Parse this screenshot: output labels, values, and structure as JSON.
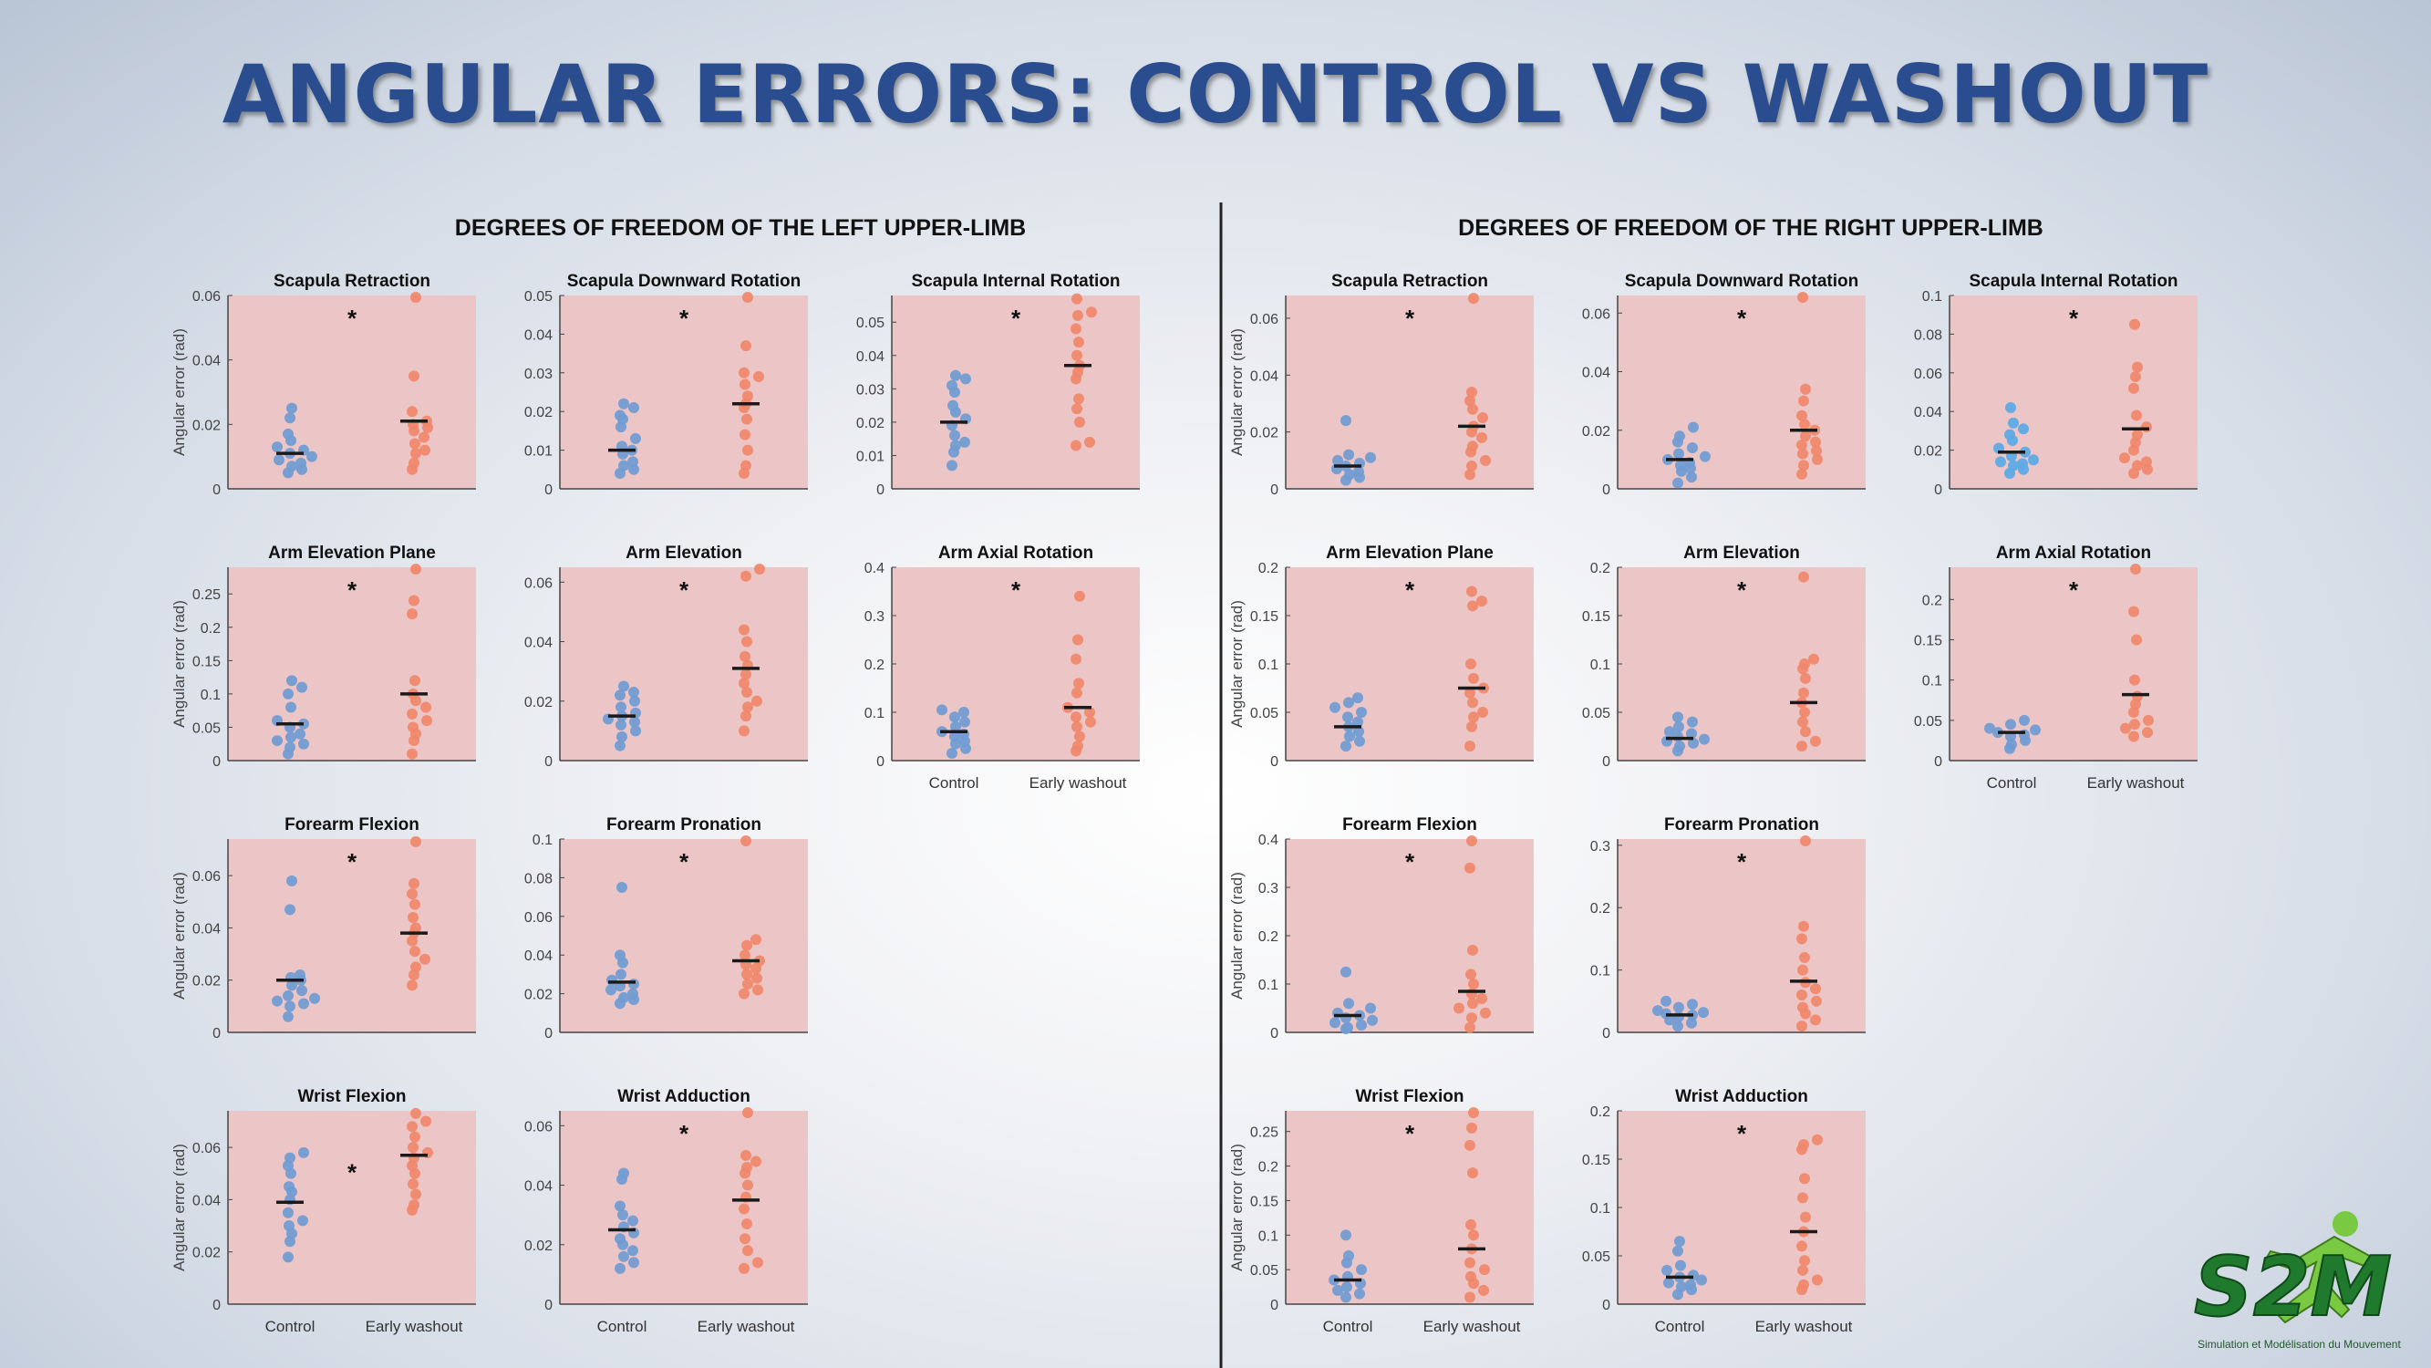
{
  "title": "ANGULAR ERRORS: CONTROL VS WASHOUT",
  "logo": {
    "text": "S2M",
    "tagline": "Simulation et Modélisation du Mouvement"
  },
  "colors": {
    "control": "#6f9bd3",
    "washout": "#f0876a",
    "panel_bg": "#ecc6c6",
    "title": "#2a4d8f",
    "median": "#1a1a1a"
  },
  "chart_data": [
    {
      "type": "scatter",
      "group_title": "DEGREES OF FREEDOM OF THE LEFT UPPER-LIMB",
      "categories": [
        "Control",
        "Early washout"
      ],
      "ylabel": "Angular error (rad)",
      "significance_marker": "*",
      "panels": [
        {
          "title": "Scapula Retraction",
          "ylim": [
            0,
            0.06
          ],
          "ticks": [
            "0",
            "0.02",
            "0.04",
            "0.06"
          ],
          "control": [
            0.005,
            0.006,
            0.007,
            0.008,
            0.009,
            0.01,
            0.011,
            0.012,
            0.013,
            0.015,
            0.017,
            0.022,
            0.025
          ],
          "control_median": 0.011,
          "washout": [
            0.006,
            0.008,
            0.011,
            0.012,
            0.014,
            0.016,
            0.018,
            0.019,
            0.02,
            0.021,
            0.024,
            0.035,
            0.06
          ],
          "washout_median": 0.021
        },
        {
          "title": "Scapula Downward Rotation",
          "ylim": [
            0,
            0.05
          ],
          "ticks": [
            "0",
            "0.01",
            "0.02",
            "0.03",
            "0.04",
            "0.05"
          ],
          "control": [
            0.004,
            0.005,
            0.006,
            0.007,
            0.009,
            0.01,
            0.011,
            0.013,
            0.016,
            0.018,
            0.019,
            0.021,
            0.022
          ],
          "control_median": 0.01,
          "washout": [
            0.004,
            0.006,
            0.01,
            0.014,
            0.018,
            0.021,
            0.022,
            0.024,
            0.027,
            0.029,
            0.03,
            0.037,
            0.05
          ],
          "washout_median": 0.022
        },
        {
          "title": "Scapula Internal Rotation",
          "ylim": [
            0,
            0.058
          ],
          "ticks": [
            "0",
            "0.01",
            "0.02",
            "0.03",
            "0.04",
            "0.05"
          ],
          "control": [
            0.007,
            0.011,
            0.013,
            0.014,
            0.016,
            0.019,
            0.021,
            0.023,
            0.025,
            0.029,
            0.031,
            0.033,
            0.034
          ],
          "control_median": 0.02,
          "washout": [
            0.013,
            0.014,
            0.02,
            0.024,
            0.027,
            0.033,
            0.035,
            0.037,
            0.04,
            0.044,
            0.048,
            0.052,
            0.053,
            0.057
          ],
          "washout_median": 0.037
        },
        {
          "title": "Arm Elevation Plane",
          "ylim": [
            0,
            0.29
          ],
          "ticks": [
            "0",
            "0.05",
            "0.1",
            "0.15",
            "0.2",
            "0.25"
          ],
          "control": [
            0.01,
            0.02,
            0.025,
            0.03,
            0.035,
            0.04,
            0.05,
            0.055,
            0.06,
            0.08,
            0.1,
            0.11,
            0.12
          ],
          "control_median": 0.055,
          "washout": [
            0.01,
            0.03,
            0.04,
            0.05,
            0.06,
            0.07,
            0.08,
            0.09,
            0.1,
            0.12,
            0.22,
            0.24,
            0.29
          ],
          "washout_median": 0.1
        },
        {
          "title": "Arm Elevation",
          "ylim": [
            0,
            0.065
          ],
          "ticks": [
            "0",
            "0.02",
            "0.04",
            "0.06"
          ],
          "control": [
            0.005,
            0.008,
            0.01,
            0.012,
            0.013,
            0.014,
            0.015,
            0.016,
            0.018,
            0.02,
            0.022,
            0.023,
            0.025
          ],
          "control_median": 0.015,
          "washout": [
            0.01,
            0.015,
            0.018,
            0.02,
            0.023,
            0.026,
            0.029,
            0.032,
            0.035,
            0.04,
            0.044,
            0.062,
            0.065
          ],
          "washout_median": 0.031
        },
        {
          "title": "Arm Axial Rotation",
          "ylim": [
            0,
            0.4
          ],
          "ticks": [
            "0",
            "0.1",
            "0.2",
            "0.3",
            "0.4"
          ],
          "control": [
            0.015,
            0.025,
            0.035,
            0.04,
            0.05,
            0.055,
            0.06,
            0.07,
            0.08,
            0.09,
            0.1,
            0.105
          ],
          "control_median": 0.06,
          "washout": [
            0.02,
            0.03,
            0.05,
            0.07,
            0.08,
            0.09,
            0.1,
            0.11,
            0.14,
            0.16,
            0.21,
            0.25,
            0.34
          ],
          "washout_median": 0.11
        },
        {
          "title": "Forearm Flexion",
          "ylim": [
            0,
            0.074
          ],
          "ticks": [
            "0",
            "0.02",
            "0.04",
            "0.06"
          ],
          "control": [
            0.006,
            0.01,
            0.011,
            0.012,
            0.013,
            0.014,
            0.016,
            0.018,
            0.02,
            0.021,
            0.022,
            0.047,
            0.058
          ],
          "control_median": 0.02,
          "washout": [
            0.018,
            0.022,
            0.025,
            0.028,
            0.031,
            0.035,
            0.038,
            0.04,
            0.044,
            0.049,
            0.053,
            0.057,
            0.073
          ],
          "washout_median": 0.038
        },
        {
          "title": "Forearm Pronation",
          "ylim": [
            0,
            0.1
          ],
          "ticks": [
            "0",
            "0.02",
            "0.04",
            "0.06",
            "0.08",
            "0.1"
          ],
          "control": [
            0.015,
            0.017,
            0.018,
            0.02,
            0.022,
            0.024,
            0.025,
            0.027,
            0.03,
            0.036,
            0.04,
            0.075
          ],
          "control_median": 0.026,
          "washout": [
            0.02,
            0.022,
            0.025,
            0.028,
            0.03,
            0.033,
            0.035,
            0.037,
            0.04,
            0.045,
            0.048,
            0.1
          ],
          "washout_median": 0.037
        },
        {
          "title": "Wrist Flexion",
          "ylim": [
            0,
            0.074
          ],
          "ticks": [
            "0",
            "0.02",
            "0.04",
            "0.06"
          ],
          "control": [
            0.018,
            0.024,
            0.027,
            0.03,
            0.032,
            0.035,
            0.04,
            0.043,
            0.045,
            0.05,
            0.053,
            0.056,
            0.058
          ],
          "control_median": 0.039,
          "washout": [
            0.036,
            0.038,
            0.042,
            0.046,
            0.05,
            0.053,
            0.056,
            0.058,
            0.06,
            0.064,
            0.068,
            0.07,
            0.073
          ],
          "washout_median": 0.057,
          "star_position": "between"
        },
        {
          "title": "Wrist  Adduction",
          "ylim": [
            0,
            0.065
          ],
          "ticks": [
            "0",
            "0.02",
            "0.04",
            "0.06"
          ],
          "control": [
            0.012,
            0.014,
            0.016,
            0.018,
            0.02,
            0.022,
            0.024,
            0.026,
            0.028,
            0.03,
            0.033,
            0.042,
            0.044
          ],
          "control_median": 0.025,
          "washout": [
            0.012,
            0.014,
            0.018,
            0.022,
            0.027,
            0.032,
            0.036,
            0.04,
            0.044,
            0.046,
            0.048,
            0.05,
            0.065
          ],
          "washout_median": 0.035
        }
      ]
    },
    {
      "type": "scatter",
      "group_title": "DEGREES OF FREEDOM OF THE RIGHT UPPER-LIMB",
      "categories": [
        "Control",
        "Early washout"
      ],
      "ylabel": "Angular error (rad)",
      "significance_marker": "*",
      "panels": [
        {
          "title": "Scapula Retraction",
          "ylim": [
            0,
            0.068
          ],
          "ticks": [
            "0",
            "0.02",
            "0.04",
            "0.06"
          ],
          "control": [
            0.003,
            0.004,
            0.005,
            0.006,
            0.007,
            0.008,
            0.009,
            0.01,
            0.011,
            0.012,
            0.024
          ],
          "control_median": 0.008,
          "washout": [
            0.005,
            0.008,
            0.01,
            0.013,
            0.015,
            0.018,
            0.02,
            0.022,
            0.025,
            0.028,
            0.031,
            0.034,
            0.067
          ],
          "washout_median": 0.022
        },
        {
          "title": "Scapula Downward Rotation",
          "ylim": [
            0,
            0.066
          ],
          "ticks": [
            "0",
            "0.02",
            "0.04",
            "0.06"
          ],
          "control": [
            0.002,
            0.004,
            0.006,
            0.007,
            0.008,
            0.009,
            0.01,
            0.011,
            0.012,
            0.014,
            0.016,
            0.018,
            0.021
          ],
          "control_median": 0.01,
          "washout": [
            0.005,
            0.008,
            0.01,
            0.012,
            0.013,
            0.015,
            0.016,
            0.018,
            0.02,
            0.022,
            0.025,
            0.03,
            0.034,
            0.066
          ],
          "washout_median": 0.02
        },
        {
          "title": "Scapula Internal Rotation",
          "ylim": [
            0,
            0.1
          ],
          "ticks": [
            "0",
            "0.02",
            "0.04",
            "0.06",
            "0.08",
            "0.1"
          ],
          "control": [
            0.008,
            0.01,
            0.012,
            0.013,
            0.014,
            0.015,
            0.017,
            0.019,
            0.021,
            0.025,
            0.028,
            0.031,
            0.034,
            0.042
          ],
          "control_median": 0.019,
          "washout": [
            0.008,
            0.01,
            0.012,
            0.014,
            0.016,
            0.02,
            0.024,
            0.028,
            0.032,
            0.038,
            0.052,
            0.058,
            0.063,
            0.085
          ],
          "washout_median": 0.031,
          "color_override": "#5aa9e6"
        },
        {
          "title": "Arm Elevation Plane",
          "ylim": [
            0,
            0.2
          ],
          "ticks": [
            "0",
            "0.05",
            "0.1",
            "0.15",
            "0.2"
          ],
          "control": [
            0.015,
            0.02,
            0.025,
            0.03,
            0.035,
            0.04,
            0.045,
            0.05,
            0.055,
            0.06,
            0.065
          ],
          "control_median": 0.035,
          "washout": [
            0.015,
            0.035,
            0.045,
            0.05,
            0.06,
            0.07,
            0.075,
            0.085,
            0.1,
            0.16,
            0.165,
            0.175
          ],
          "washout_median": 0.075
        },
        {
          "title": "Arm Elevation",
          "ylim": [
            0,
            0.2
          ],
          "ticks": [
            "0",
            "0.05",
            "0.1",
            "0.15",
            "0.2"
          ],
          "control": [
            0.01,
            0.015,
            0.018,
            0.02,
            0.022,
            0.025,
            0.028,
            0.03,
            0.035,
            0.04,
            0.045
          ],
          "control_median": 0.023,
          "washout": [
            0.015,
            0.02,
            0.03,
            0.04,
            0.05,
            0.06,
            0.07,
            0.085,
            0.095,
            0.1,
            0.105,
            0.19
          ],
          "washout_median": 0.06
        },
        {
          "title": "Arm Axial Rotation",
          "ylim": [
            0,
            0.24
          ],
          "ticks": [
            "0",
            "0.05",
            "0.1",
            "0.15",
            "0.2"
          ],
          "control": [
            0.015,
            0.02,
            0.025,
            0.03,
            0.032,
            0.035,
            0.038,
            0.04,
            0.045,
            0.05
          ],
          "control_median": 0.035,
          "washout": [
            0.03,
            0.035,
            0.04,
            0.045,
            0.05,
            0.06,
            0.07,
            0.08,
            0.1,
            0.15,
            0.185,
            0.24
          ],
          "washout_median": 0.082
        },
        {
          "title": "Forearm Flexion",
          "ylim": [
            0,
            0.4
          ],
          "ticks": [
            "0",
            "0.1",
            "0.2",
            "0.3",
            "0.4"
          ],
          "control": [
            0.005,
            0.01,
            0.015,
            0.02,
            0.025,
            0.03,
            0.035,
            0.04,
            0.05,
            0.06,
            0.125
          ],
          "control_median": 0.035,
          "washout": [
            0.01,
            0.03,
            0.04,
            0.05,
            0.06,
            0.07,
            0.08,
            0.1,
            0.12,
            0.17,
            0.34,
            0.4
          ],
          "washout_median": 0.085
        },
        {
          "title": "Forearm Pronation",
          "ylim": [
            0,
            0.31
          ],
          "ticks": [
            "0",
            "0.1",
            "0.2",
            "0.3"
          ],
          "control": [
            0.01,
            0.015,
            0.02,
            0.025,
            0.028,
            0.03,
            0.032,
            0.035,
            0.04,
            0.045,
            0.05
          ],
          "control_median": 0.028,
          "washout": [
            0.01,
            0.02,
            0.03,
            0.04,
            0.05,
            0.06,
            0.07,
            0.08,
            0.1,
            0.12,
            0.15,
            0.17,
            0.31
          ],
          "washout_median": 0.082
        },
        {
          "title": "Wrist Flexion",
          "ylim": [
            0,
            0.28
          ],
          "ticks": [
            "0",
            "0.05",
            "0.1",
            "0.15",
            "0.2",
            "0.25"
          ],
          "control": [
            0.01,
            0.015,
            0.02,
            0.025,
            0.03,
            0.035,
            0.04,
            0.05,
            0.06,
            0.07,
            0.1
          ],
          "control_median": 0.035,
          "washout": [
            0.01,
            0.02,
            0.03,
            0.04,
            0.05,
            0.06,
            0.08,
            0.1,
            0.115,
            0.19,
            0.23,
            0.255,
            0.28
          ],
          "washout_median": 0.08
        },
        {
          "title": "Wrist Adduction",
          "ylim": [
            0,
            0.2
          ],
          "ticks": [
            "0",
            "0.05",
            "0.1",
            "0.15",
            "0.2"
          ],
          "control": [
            0.01,
            0.015,
            0.018,
            0.02,
            0.022,
            0.025,
            0.028,
            0.03,
            0.035,
            0.04,
            0.055,
            0.065
          ],
          "control_median": 0.028,
          "washout": [
            0.015,
            0.02,
            0.025,
            0.035,
            0.045,
            0.06,
            0.075,
            0.09,
            0.11,
            0.13,
            0.16,
            0.165,
            0.17
          ],
          "washout_median": 0.075
        }
      ]
    }
  ]
}
